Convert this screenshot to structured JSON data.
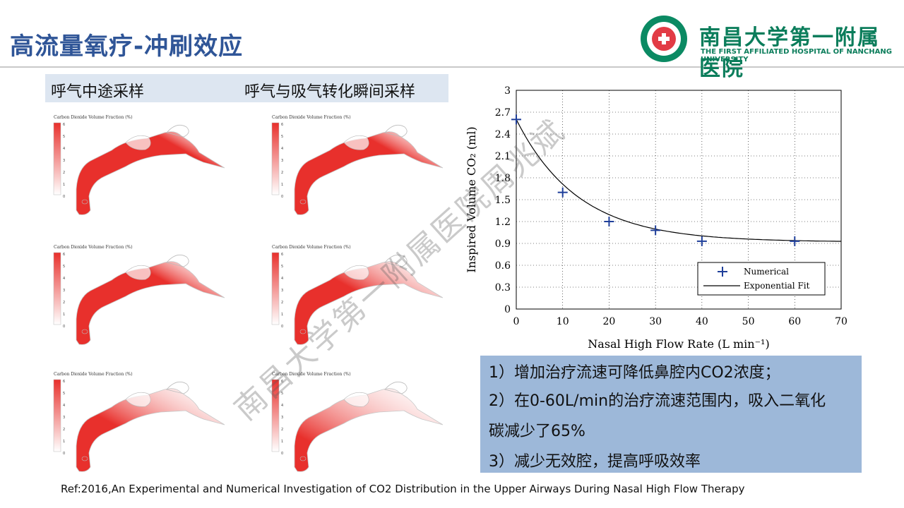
{
  "header": {
    "title": "高流量氧疗-冲刷效应",
    "logo_cn": "南昌大学第一附属医院",
    "logo_en": "THE FIRST AFFILIATED HOSPITAL OF NANCHANG UNIVERSITY"
  },
  "labels": {
    "left": "呼气中途采样",
    "right": "呼气与吸气转化瞬间采样"
  },
  "simulations": {
    "colorbar_title": "Carbon Dioxide Volume Fraction (%)",
    "colorbar_ticks": [
      "6",
      "5",
      "4",
      "3",
      "2",
      "1",
      "0"
    ],
    "panels": [
      {
        "fill": 1.0
      },
      {
        "fill": 0.95
      },
      {
        "fill": 0.9
      },
      {
        "fill": 0.7
      },
      {
        "fill": 0.55
      },
      {
        "fill": 0.3
      }
    ],
    "colors": {
      "high": "#e8302c",
      "low": "#ffffff"
    }
  },
  "chart_data": {
    "type": "scatter",
    "xlabel": "Nasal High Flow Rate (L min⁻¹)",
    "ylabel": "Inspired Volume CO₂ (ml)",
    "xlim": [
      0,
      70
    ],
    "ylim": [
      0,
      3
    ],
    "xticks": [
      "0",
      "10",
      "20",
      "30",
      "40",
      "50",
      "60",
      "70"
    ],
    "yticks": [
      "0",
      "0.3",
      "0.6",
      "0.9",
      "1.2",
      "1.5",
      "1.8",
      "2.1",
      "2.4",
      "2.7",
      "3"
    ],
    "grid": true,
    "legend_position": "bottom-right",
    "series": [
      {
        "name": "Numerical",
        "x": [
          0,
          10,
          20,
          30,
          40,
          60
        ],
        "y": [
          2.6,
          1.6,
          1.2,
          1.08,
          0.93,
          0.93
        ],
        "color": "#1f3f9a"
      },
      {
        "name": "Exponential Fit",
        "fit": {
          "a": 1.68,
          "k": 0.075,
          "c": 0.92
        },
        "color": "#000000"
      }
    ]
  },
  "summary": {
    "line1": "1）增加治疗流速可降低鼻腔内CO2浓度；",
    "line2": "2）在0-60L/min的治疗流速范围内，吸入二氧化",
    "line3": "碳减少了65%",
    "line4": "3）减少无效腔，提高呼吸效率"
  },
  "reference": "Ref:2016,An Experimental and Numerical Investigation of CO2 Distribution in the Upper Airways During Nasal High Flow Therapy",
  "watermark": "南昌大学第一附属医院周兆斌"
}
